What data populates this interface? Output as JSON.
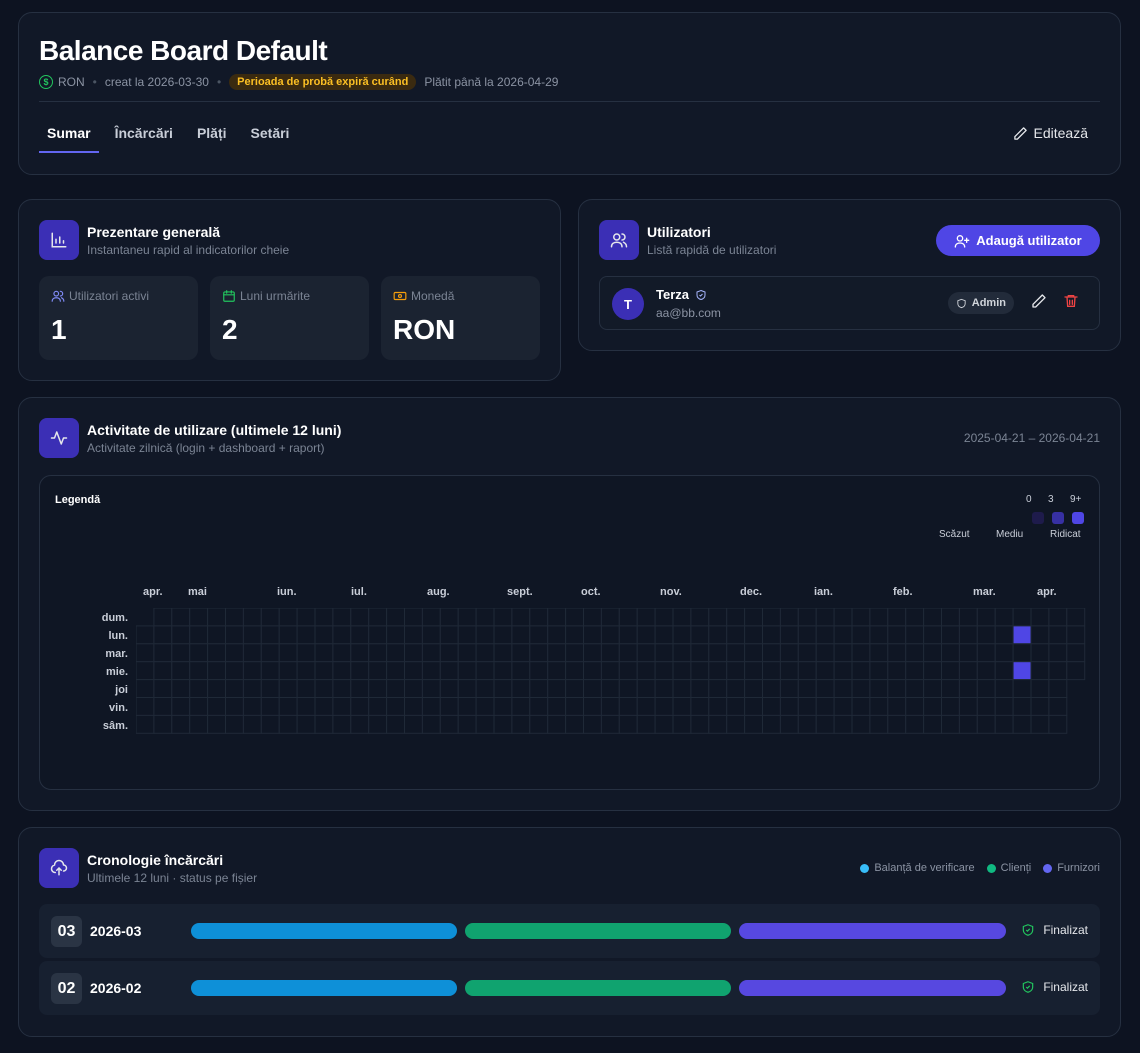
{
  "header": {
    "title": "Balance Board Default",
    "currency": "RON",
    "created": "creat la 2026-03-30",
    "trial_badge": "Perioada de probă expiră curând",
    "paid_until": "Plătit până la 2026-04-29",
    "tabs": [
      "Sumar",
      "Încărcări",
      "Plăți",
      "Setări"
    ],
    "active_tab": "Sumar",
    "edit_label": "Editează"
  },
  "overview": {
    "title": "Prezentare generală",
    "subtitle": "Instantaneu rapid al indicatorilor cheie",
    "stats": [
      {
        "label": "Utilizatori activi",
        "value": "1",
        "icon": "users-icon",
        "color": "#818cf8"
      },
      {
        "label": "Luni urmărite",
        "value": "2",
        "icon": "calendar-icon",
        "color": "#22c55e"
      },
      {
        "label": "Monedă",
        "value": "RON",
        "icon": "money-icon",
        "color": "#f59e0b"
      }
    ]
  },
  "users": {
    "title": "Utilizatori",
    "subtitle": "Listă rapidă de utilizatori",
    "add_label": "Adaugă utilizator",
    "list": [
      {
        "initial": "T",
        "name": "Terza",
        "email": "aa@bb.com",
        "role": "Admin"
      }
    ]
  },
  "activity": {
    "title": "Activitate de utilizare (ultimele 12 luni)",
    "subtitle": "Activitate zilnică (login + dashboard + raport)",
    "range": "2025-04-21 – 2026-04-21",
    "legend": {
      "title": "Legendă",
      "numbers": [
        "0",
        "3",
        "9+"
      ],
      "labels": [
        "Scăzut",
        "Mediu",
        "Ridicat"
      ],
      "colors": [
        "#1e1b4b",
        "#3730a3",
        "#4f46e5"
      ]
    },
    "months": [
      "apr.",
      "mai",
      "iun.",
      "iul.",
      "aug.",
      "sept.",
      "oct.",
      "nov.",
      "dec.",
      "ian.",
      "feb.",
      "mar.",
      "apr."
    ],
    "days": [
      "dum.",
      "lun.",
      "mar.",
      "mie.",
      "joi",
      "vin.",
      "sâm."
    ],
    "active_days": [
      {
        "week": 49,
        "day": 1,
        "level": 2
      },
      {
        "week": 49,
        "day": 3,
        "level": 2
      }
    ]
  },
  "uploads": {
    "title": "Cronologie încărcări",
    "subtitle": "Ultimele 12 luni · status pe fișier",
    "legend": [
      {
        "label": "Balanță de verificare",
        "color": "#38bdf8"
      },
      {
        "label": "Clienți",
        "color": "#10b981"
      },
      {
        "label": "Furnizori",
        "color": "#6366f1"
      }
    ],
    "rows": [
      {
        "num": "03",
        "month": "2026-03",
        "status": "Finalizat",
        "progress": [
          1,
          1,
          1
        ]
      },
      {
        "num": "02",
        "month": "2026-02",
        "status": "Finalizat",
        "progress": [
          1,
          1,
          1
        ]
      }
    ],
    "bar_colors": [
      "#0e90d8",
      "#10a36f",
      "#5748e0"
    ]
  }
}
